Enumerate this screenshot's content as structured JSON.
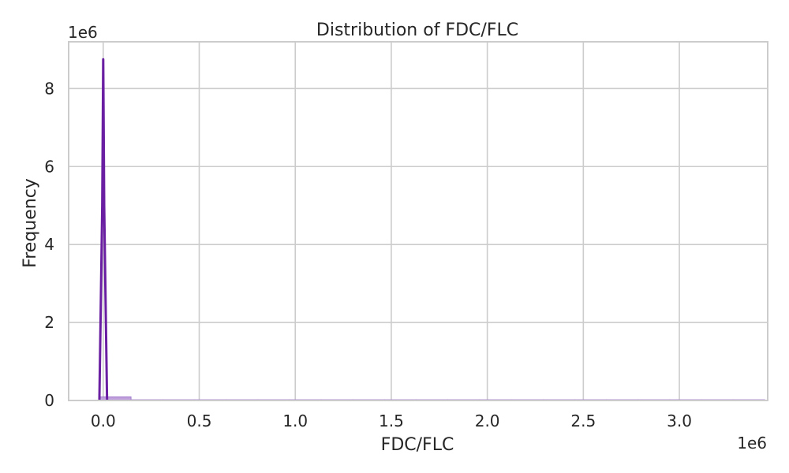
{
  "chart_data": {
    "type": "bar",
    "title": "Distribution of FDC/FLC",
    "xlabel": "FDC/FLC",
    "ylabel": "Frequency",
    "x_offset_label": "1e6",
    "y_offset_label": "1e6",
    "x_scale": 1000000,
    "y_scale": 1000000,
    "xlim": [
      -180000,
      3460000
    ],
    "ylim": [
      0,
      9200000
    ],
    "xticks": [
      0,
      500000,
      1000000,
      1500000,
      2000000,
      2500000,
      3000000
    ],
    "xtick_labels": [
      "0.0",
      "0.5",
      "1.0",
      "1.5",
      "2.0",
      "2.5",
      "3.0"
    ],
    "yticks": [
      0,
      2000000,
      4000000,
      6000000,
      8000000
    ],
    "ytick_labels": [
      "0",
      "2",
      "4",
      "6",
      "8"
    ],
    "grid": true,
    "histogram": {
      "bin_start": -20000,
      "bin_width": 165000,
      "counts": [
        95000,
        20000,
        20000,
        20000,
        20000,
        20000,
        20000,
        20000,
        20000,
        20000,
        20000,
        20000,
        20000,
        20000,
        20000,
        20000,
        20000,
        20000,
        20000,
        20000,
        20000
      ]
    },
    "kde": {
      "x": [
        -20000,
        -5000,
        0,
        5000,
        20000
      ],
      "y": [
        0,
        5000000,
        8750000,
        5000000,
        0
      ]
    },
    "colors": {
      "bar_fill": "#b48fd6",
      "bar_stroke": "#9a6fc8",
      "kde_line": "#6a1fa2",
      "grid": "#cccccc",
      "frame": "#cccccc"
    }
  }
}
